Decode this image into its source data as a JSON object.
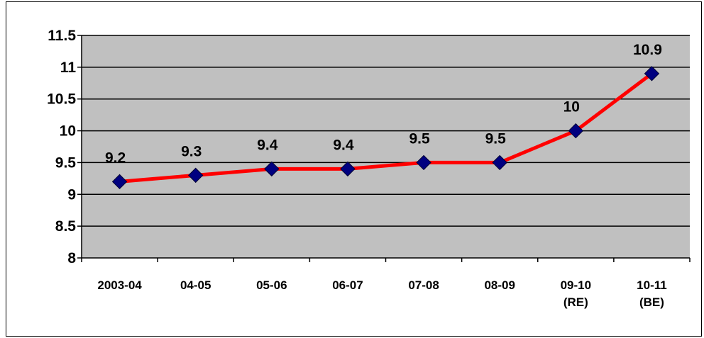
{
  "chart_data": {
    "type": "line",
    "title": "",
    "xlabel": "",
    "ylabel": "",
    "categories": [
      [
        "2003-04"
      ],
      [
        "04-05"
      ],
      [
        "05-06"
      ],
      [
        "06-07"
      ],
      [
        "07-08"
      ],
      [
        "08-09"
      ],
      [
        "09-10",
        "(RE)"
      ],
      [
        "10-11",
        "(BE)"
      ]
    ],
    "series": [
      {
        "values": [
          9.2,
          9.3,
          9.4,
          9.4,
          9.5,
          9.5,
          10,
          10.9
        ],
        "data_labels": [
          "9.2",
          "9.3",
          "9.4",
          "9.4",
          "9.5",
          "9.5",
          "10",
          "10.9"
        ]
      }
    ],
    "ylim": [
      8,
      11.5
    ],
    "yticks": [
      8,
      8.5,
      9,
      9.5,
      10,
      10.5,
      11,
      11.5
    ],
    "ytick_labels": [
      "8",
      "8.5",
      "9",
      "9.5",
      "10",
      "10.5",
      "11",
      "11.5"
    ],
    "grid": true,
    "legend": "none",
    "colors": {
      "plot_background": "#c0c0c0",
      "line": "#ff0000",
      "marker": "#000080",
      "gridline": "#000000"
    }
  }
}
